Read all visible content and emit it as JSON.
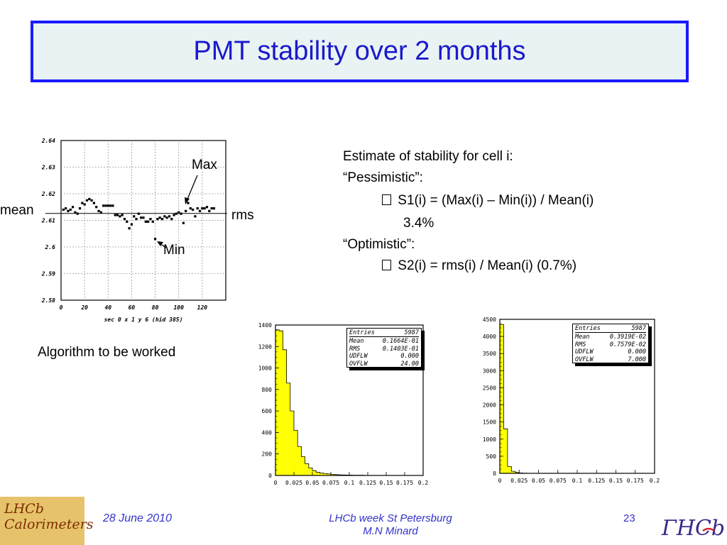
{
  "slide": {
    "title": "PMT stability over 2 months",
    "estimate": {
      "line1": "Estimate of stability for cell i:",
      "line2": "“Pessimistic”:",
      "line3": " S1(i) = (Max(i) – Min(i)) / Mean(i)",
      "line4": "3.4%",
      "line5": "“Optimistic”:",
      "line6": " S2(i) = rms(i) / Mean(i) (0.7%)"
    },
    "algorithm_note": "Algorithm to be worked",
    "footer": {
      "date": "28 June 2010",
      "center_line1": "LHCb week St Petersburg",
      "center_line2": "M.N Minard",
      "page": "23"
    },
    "logo_left": {
      "line1": "LHCb",
      "line2": "Calorimeters"
    },
    "logo_right": {
      "text": "ΓHCb"
    }
  },
  "chart_data": [
    {
      "type": "scatter",
      "xlabel": "sec 0 x 1 y 6 (hid 385)",
      "xlim": [
        0,
        140
      ],
      "ylim": [
        2.58,
        2.64
      ],
      "xticks": [
        "0",
        "20",
        "40",
        "60",
        "80",
        "100",
        "120"
      ],
      "yticks": [
        "2.64",
        "2.63",
        "2.62",
        "2.61",
        "2.6",
        "2.59",
        "2.58"
      ],
      "grid": true,
      "mean_line": 2.6126,
      "annotations": {
        "max": "Max",
        "min": "Min",
        "mean": "mean",
        "rms": "rms"
      },
      "x": [
        2,
        4,
        6,
        8,
        10,
        12,
        14,
        16,
        18,
        20,
        22,
        24,
        26,
        28,
        30,
        32,
        34,
        36,
        38,
        40,
        42,
        44,
        46,
        48,
        50,
        52,
        54,
        56,
        58,
        60,
        62,
        64,
        66,
        68,
        70,
        72,
        74,
        76,
        78,
        80,
        82,
        84,
        86,
        88,
        90,
        92,
        94,
        96,
        98,
        100,
        102,
        104,
        106,
        108,
        110,
        112,
        114,
        116,
        118,
        120,
        122,
        124,
        126,
        128,
        130
      ],
      "values": [
        2.614,
        2.6145,
        2.6135,
        2.614,
        2.615,
        2.613,
        2.6125,
        2.6145,
        2.6165,
        2.616,
        2.6175,
        2.618,
        2.6175,
        2.6165,
        2.615,
        2.6135,
        2.613,
        2.6155,
        2.6155,
        2.6155,
        2.6155,
        2.6155,
        2.612,
        2.612,
        2.6115,
        2.612,
        2.6105,
        2.6095,
        2.607,
        2.6085,
        2.6115,
        2.6105,
        2.6125,
        2.611,
        2.611,
        2.6095,
        2.6095,
        2.6105,
        2.6095,
        2.603,
        2.6105,
        2.611,
        2.6105,
        2.6115,
        2.611,
        2.6115,
        2.6105,
        2.612,
        2.6125,
        2.613,
        2.6125,
        2.609,
        2.6135,
        2.6165,
        2.6145,
        2.614,
        2.6115,
        2.6145,
        2.6135,
        2.6145,
        2.6145,
        2.615,
        2.6135,
        2.6145,
        2.6145
      ]
    },
    {
      "type": "bar",
      "xlim": [
        0,
        0.2
      ],
      "ylim": [
        0,
        1400
      ],
      "xticks": [
        "0",
        "0.025",
        "0.05",
        "0.075",
        "0.1",
        "0.125",
        "0.15",
        "0.175",
        "0.2"
      ],
      "yticks": [
        "0",
        "200",
        "400",
        "600",
        "800",
        "1000",
        "1200",
        "1400"
      ],
      "bin_width": 0.005,
      "values": [
        1355,
        1345,
        1170,
        860,
        600,
        420,
        270,
        175,
        110,
        70,
        45,
        30,
        22,
        18,
        14,
        10,
        8,
        6,
        5,
        4,
        3,
        2,
        2,
        2,
        1,
        1,
        1,
        1,
        1,
        1,
        0,
        0,
        0,
        0,
        0,
        0,
        0,
        0,
        0,
        0
      ],
      "stats": [
        {
          "label": "Entries",
          "value": "5987"
        },
        {
          "label": "Mean",
          "value": "0.1664E-01"
        },
        {
          "label": "RMS",
          "value": "0.1403E-01"
        },
        {
          "label": "UDFLW",
          "value": "0.000"
        },
        {
          "label": "OVFLW",
          "value": "24.00"
        }
      ],
      "fill_color": "#ffff00"
    },
    {
      "type": "bar",
      "xlim": [
        0,
        0.2
      ],
      "ylim": [
        0,
        4500
      ],
      "xticks": [
        "0",
        "0.025",
        "0.05",
        "0.075",
        "0.1",
        "0.125",
        "0.15",
        "0.175",
        "0.2"
      ],
      "yticks": [
        "0",
        "500",
        "1000",
        "1500",
        "2000",
        "2500",
        "3000",
        "3500",
        "4000",
        "4500"
      ],
      "bin_width": 0.005,
      "values": [
        4350,
        1300,
        200,
        60,
        25,
        10,
        5,
        3,
        2,
        1,
        1,
        0,
        0,
        0,
        0,
        0,
        0,
        0,
        0,
        0,
        0,
        0,
        0,
        0,
        0,
        0,
        0,
        0,
        0,
        0,
        0,
        0,
        0,
        0,
        0,
        0,
        0,
        0,
        0,
        0
      ],
      "stats": [
        {
          "label": "Entries",
          "value": "5987"
        },
        {
          "label": "Mean",
          "value": "0.3919E-02"
        },
        {
          "label": "RMS",
          "value": "0.7579E-02"
        },
        {
          "label": "UDFLW",
          "value": "0.000"
        },
        {
          "label": "OVFLW",
          "value": "7.000"
        }
      ],
      "fill_color": "#ffff00"
    }
  ]
}
